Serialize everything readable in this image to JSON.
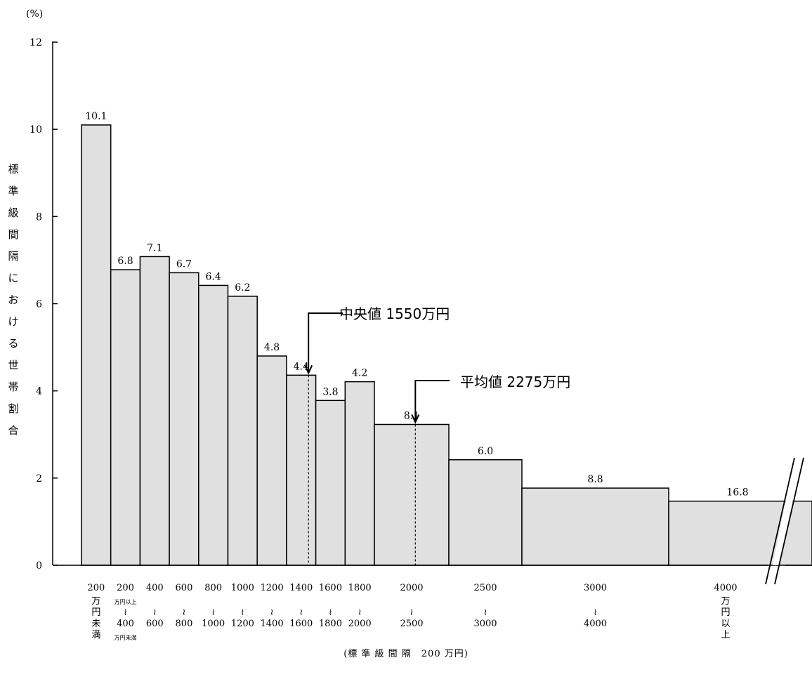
{
  "chart_data": {
    "type": "bar",
    "unit_label": "(%)",
    "ylabel_chars": [
      "標",
      "準",
      "級",
      "間",
      "隔",
      "に",
      "お",
      "け",
      "る",
      "世",
      "帯",
      "割",
      "合"
    ],
    "xlabel": "(標 準 級 間 隔　200 万円)",
    "ylim": [
      0,
      12
    ],
    "yticks": [
      0,
      2,
      4,
      6,
      8,
      10,
      12
    ],
    "bars": [
      {
        "from": 0,
        "to": 200,
        "height": 10.1,
        "label": "10.1",
        "cat_lines": [
          {
            "t": "200",
            "s": "n"
          },
          {
            "t": "万",
            "s": "s"
          },
          {
            "t": "円",
            "s": "s"
          },
          {
            "t": "未",
            "s": "s"
          },
          {
            "t": "満",
            "s": "s"
          }
        ]
      },
      {
        "from": 200,
        "to": 400,
        "height": 6.78,
        "label": "6.8",
        "cat_lines": [
          {
            "t": "200",
            "s": "n"
          },
          {
            "t": "万円以上",
            "s": "xs"
          },
          {
            "t": "≀",
            "s": "s"
          },
          {
            "t": "400",
            "s": "n"
          },
          {
            "t": "万円未満",
            "s": "xs"
          }
        ]
      },
      {
        "from": 400,
        "to": 600,
        "height": 7.08,
        "label": "7.1",
        "cat_lines": [
          {
            "t": "400",
            "s": "n"
          },
          {
            "t": "",
            "s": "s"
          },
          {
            "t": "≀",
            "s": "s"
          },
          {
            "t": "600",
            "s": "n"
          }
        ]
      },
      {
        "from": 600,
        "to": 800,
        "height": 6.71,
        "label": "6.7",
        "cat_lines": [
          {
            "t": "600",
            "s": "n"
          },
          {
            "t": "",
            "s": "s"
          },
          {
            "t": "≀",
            "s": "s"
          },
          {
            "t": "800",
            "s": "n"
          }
        ]
      },
      {
        "from": 800,
        "to": 1000,
        "height": 6.42,
        "label": "6.4",
        "cat_lines": [
          {
            "t": "800",
            "s": "n"
          },
          {
            "t": "",
            "s": "s"
          },
          {
            "t": "≀",
            "s": "s"
          },
          {
            "t": "1000",
            "s": "n"
          }
        ]
      },
      {
        "from": 1000,
        "to": 1200,
        "height": 6.17,
        "label": "6.2",
        "cat_lines": [
          {
            "t": "1000",
            "s": "n"
          },
          {
            "t": "",
            "s": "s"
          },
          {
            "t": "≀",
            "s": "s"
          },
          {
            "t": "1200",
            "s": "n"
          }
        ]
      },
      {
        "from": 1200,
        "to": 1400,
        "height": 4.8,
        "label": "4.8",
        "cat_lines": [
          {
            "t": "1200",
            "s": "n"
          },
          {
            "t": "",
            "s": "s"
          },
          {
            "t": "≀",
            "s": "s"
          },
          {
            "t": "1400",
            "s": "n"
          }
        ]
      },
      {
        "from": 1400,
        "to": 1600,
        "height": 4.36,
        "label": "4.4",
        "cat_lines": [
          {
            "t": "1400",
            "s": "n"
          },
          {
            "t": "",
            "s": "s"
          },
          {
            "t": "≀",
            "s": "s"
          },
          {
            "t": "1600",
            "s": "n"
          }
        ]
      },
      {
        "from": 1600,
        "to": 1800,
        "height": 3.78,
        "label": "3.8",
        "cat_lines": [
          {
            "t": "1600",
            "s": "n"
          },
          {
            "t": "",
            "s": "s"
          },
          {
            "t": "≀",
            "s": "s"
          },
          {
            "t": "1800",
            "s": "n"
          }
        ]
      },
      {
        "from": 1800,
        "to": 2000,
        "height": 4.21,
        "label": "4.2",
        "cat_lines": [
          {
            "t": "1800",
            "s": "n"
          },
          {
            "t": "",
            "s": "s"
          },
          {
            "t": "≀",
            "s": "s"
          },
          {
            "t": "2000",
            "s": "n"
          }
        ]
      },
      {
        "from": 2000,
        "to": 2500,
        "height": 3.23,
        "label": "8.1",
        "cat_lines": [
          {
            "t": "2000",
            "s": "n"
          },
          {
            "t": "",
            "s": "s"
          },
          {
            "t": "≀",
            "s": "s"
          },
          {
            "t": "2500",
            "s": "n"
          }
        ]
      },
      {
        "from": 2500,
        "to": 3000,
        "height": 2.42,
        "label": "6.0",
        "cat_lines": [
          {
            "t": "2500",
            "s": "n"
          },
          {
            "t": "",
            "s": "s"
          },
          {
            "t": "≀",
            "s": "s"
          },
          {
            "t": "3000",
            "s": "n"
          }
        ]
      },
      {
        "from": 3000,
        "to": 4000,
        "height": 1.77,
        "label": "8.8",
        "cat_lines": [
          {
            "t": "3000",
            "s": "n"
          },
          {
            "t": "",
            "s": "s"
          },
          {
            "t": "≀",
            "s": "s"
          },
          {
            "t": "4000",
            "s": "n"
          }
        ]
      },
      {
        "from": 4000,
        "to": 5000,
        "height": 1.47,
        "label": "16.8",
        "cat_lines": [
          {
            "t": "4000",
            "s": "n"
          },
          {
            "t": "万",
            "s": "s"
          },
          {
            "t": "円",
            "s": "s"
          },
          {
            "t": "以",
            "s": "s"
          },
          {
            "t": "上",
            "s": "s"
          }
        ]
      }
    ],
    "annotations": [
      {
        "text": "中央値 1550万円",
        "x": 1550
      },
      {
        "text": "平均値 2275万円",
        "x": 2275
      }
    ],
    "colors": {
      "bar_fill": "#e0e0e0",
      "bar_stroke": "#000000"
    }
  }
}
